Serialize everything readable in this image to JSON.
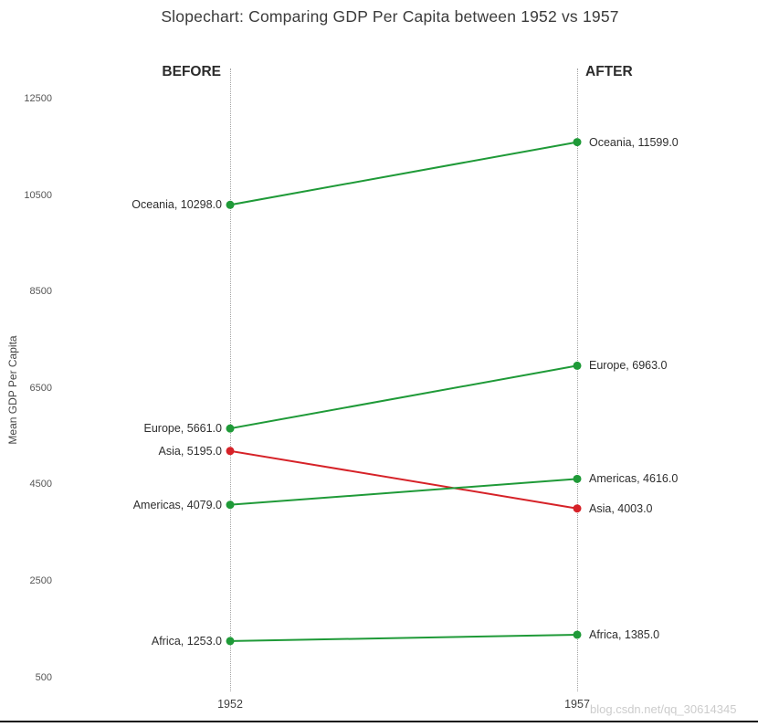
{
  "page": {
    "title": "Slopechart: Comparing GDP Per Capita between 1952 vs 1957",
    "before_header": "BEFORE",
    "after_header": "AFTER",
    "ylabel": "Mean GDP Per Capita",
    "watermark": "blog.csdn.net/qq_30614345"
  },
  "colors": {
    "green": "#1f9a38",
    "red": "#d62228",
    "axis_text": "#565656",
    "label_text": "#2e2e2e",
    "guide_line": "#a3a3a3",
    "bottom_bar": "#141414"
  },
  "chart_data": {
    "type": "line",
    "variant": "slopechart",
    "title": "Slopechart: Comparing GDP Per Capita between 1952 vs 1957",
    "ylabel": "Mean GDP Per Capita",
    "xlabel": "",
    "columns": [
      "BEFORE",
      "AFTER"
    ],
    "categories": [
      "1952",
      "1957"
    ],
    "yticks": [
      500,
      2500,
      4500,
      6500,
      8500,
      10500,
      12500
    ],
    "ylim": [
      500,
      12500
    ],
    "grid": false,
    "legend": "none",
    "series": [
      {
        "name": "Oceania",
        "values": [
          10298.0,
          11599.0
        ],
        "color": "green",
        "point_labels": [
          "Oceania, 10298.0",
          "Oceania, 11599.0"
        ]
      },
      {
        "name": "Europe",
        "values": [
          5661.0,
          6963.0
        ],
        "color": "green",
        "point_labels": [
          "Europe, 5661.0",
          "Europe, 6963.0"
        ]
      },
      {
        "name": "Asia",
        "values": [
          5195.0,
          4003.0
        ],
        "color": "red",
        "point_labels": [
          "Asia, 5195.0",
          "Asia, 4003.0"
        ]
      },
      {
        "name": "Americas",
        "values": [
          4079.0,
          4616.0
        ],
        "color": "green",
        "point_labels": [
          "Americas, 4079.0",
          "Americas, 4616.0"
        ]
      },
      {
        "name": "Africa",
        "values": [
          1253.0,
          1385.0
        ],
        "color": "green",
        "point_labels": [
          "Africa, 1253.0",
          "Africa, 1385.0"
        ]
      }
    ]
  }
}
